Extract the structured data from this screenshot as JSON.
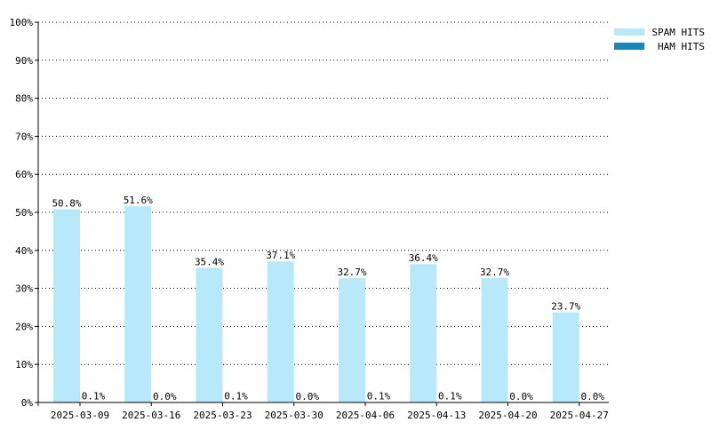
{
  "chart_data": {
    "type": "bar",
    "title": "",
    "xlabel": "",
    "ylabel": "",
    "ylim": [
      0,
      100
    ],
    "yticks": [
      0,
      10,
      20,
      30,
      40,
      50,
      60,
      70,
      80,
      90,
      100
    ],
    "ytick_labels": [
      "0%",
      "10%",
      "20%",
      "30%",
      "40%",
      "50%",
      "60%",
      "70%",
      "80%",
      "90%",
      "100%"
    ],
    "categories": [
      "2025-03-09",
      "2025-03-16",
      "2025-03-23",
      "2025-03-30",
      "2025-04-06",
      "2025-04-13",
      "2025-04-20",
      "2025-04-27"
    ],
    "series": [
      {
        "name": "SPAM HITS",
        "color": "#b7e9fb",
        "values": [
          50.8,
          51.6,
          35.4,
          37.1,
          32.7,
          36.4,
          32.7,
          23.7
        ],
        "labels": [
          "50.8%",
          "51.6%",
          "35.4%",
          "37.1%",
          "32.7%",
          "36.4%",
          "32.7%",
          "23.7%"
        ]
      },
      {
        "name": "HAM HITS",
        "color": "#1a86b8",
        "values": [
          0.1,
          0.0,
          0.1,
          0.0,
          0.1,
          0.1,
          0.0,
          0.0
        ],
        "labels": [
          "0.1%",
          "0.0%",
          "0.1%",
          "0.0%",
          "0.1%",
          "0.1%",
          "0.0%",
          "0.0%"
        ]
      }
    ],
    "grid": true,
    "legend_position": "top-right"
  }
}
